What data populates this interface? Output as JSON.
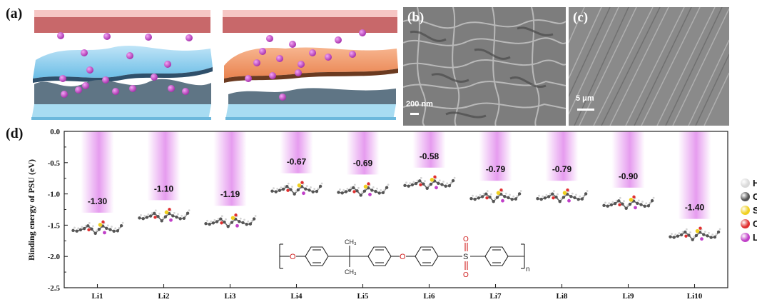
{
  "panels": {
    "a": "(a)",
    "b": "(b)",
    "c": "(c)",
    "d": "(d)"
  },
  "sem": {
    "b_scale": "200 nm",
    "c_scale": "5 μm"
  },
  "chart_data": {
    "type": "bar",
    "ylabel": "Binding energy of PSU (eV)",
    "xlabel": "",
    "ylim": [
      -2.5,
      0.0
    ],
    "yticks": [
      "0.0",
      "-0.5",
      "-1.0",
      "-1.5",
      "-2.0",
      "-2.5"
    ],
    "categories": [
      "Li1",
      "Li2",
      "Li3",
      "Li4",
      "Li5",
      "Li6",
      "Li7",
      "Li8",
      "Li9",
      "Li10"
    ],
    "values": [
      -1.3,
      -1.1,
      -1.19,
      -0.67,
      -0.69,
      -0.58,
      -0.79,
      -0.79,
      -0.9,
      -1.4
    ],
    "value_labels": [
      "-1.30",
      "-1.10",
      "-1.19",
      "-0.67",
      "-0.69",
      "-0.58",
      "-0.79",
      "-0.79",
      "-0.90",
      "-1.40"
    ],
    "bar_color": "#e9a8f0",
    "grid": false
  },
  "legend": [
    {
      "label": "H",
      "color": "#d9d9d9"
    },
    {
      "label": "C",
      "color": "#555555"
    },
    {
      "label": "S",
      "color": "#f0d020"
    },
    {
      "label": "O",
      "color": "#e03030"
    },
    {
      "label": "L",
      "color": "#c040c8"
    }
  ],
  "structure": {
    "methyl_top": "CH₃",
    "methyl_bottom": "CH₃",
    "oxygen_left": "O",
    "oxygen_mid": "O",
    "sulfur": "S",
    "oxo_top": "O",
    "oxo_bottom": "O",
    "subscript": "n"
  }
}
